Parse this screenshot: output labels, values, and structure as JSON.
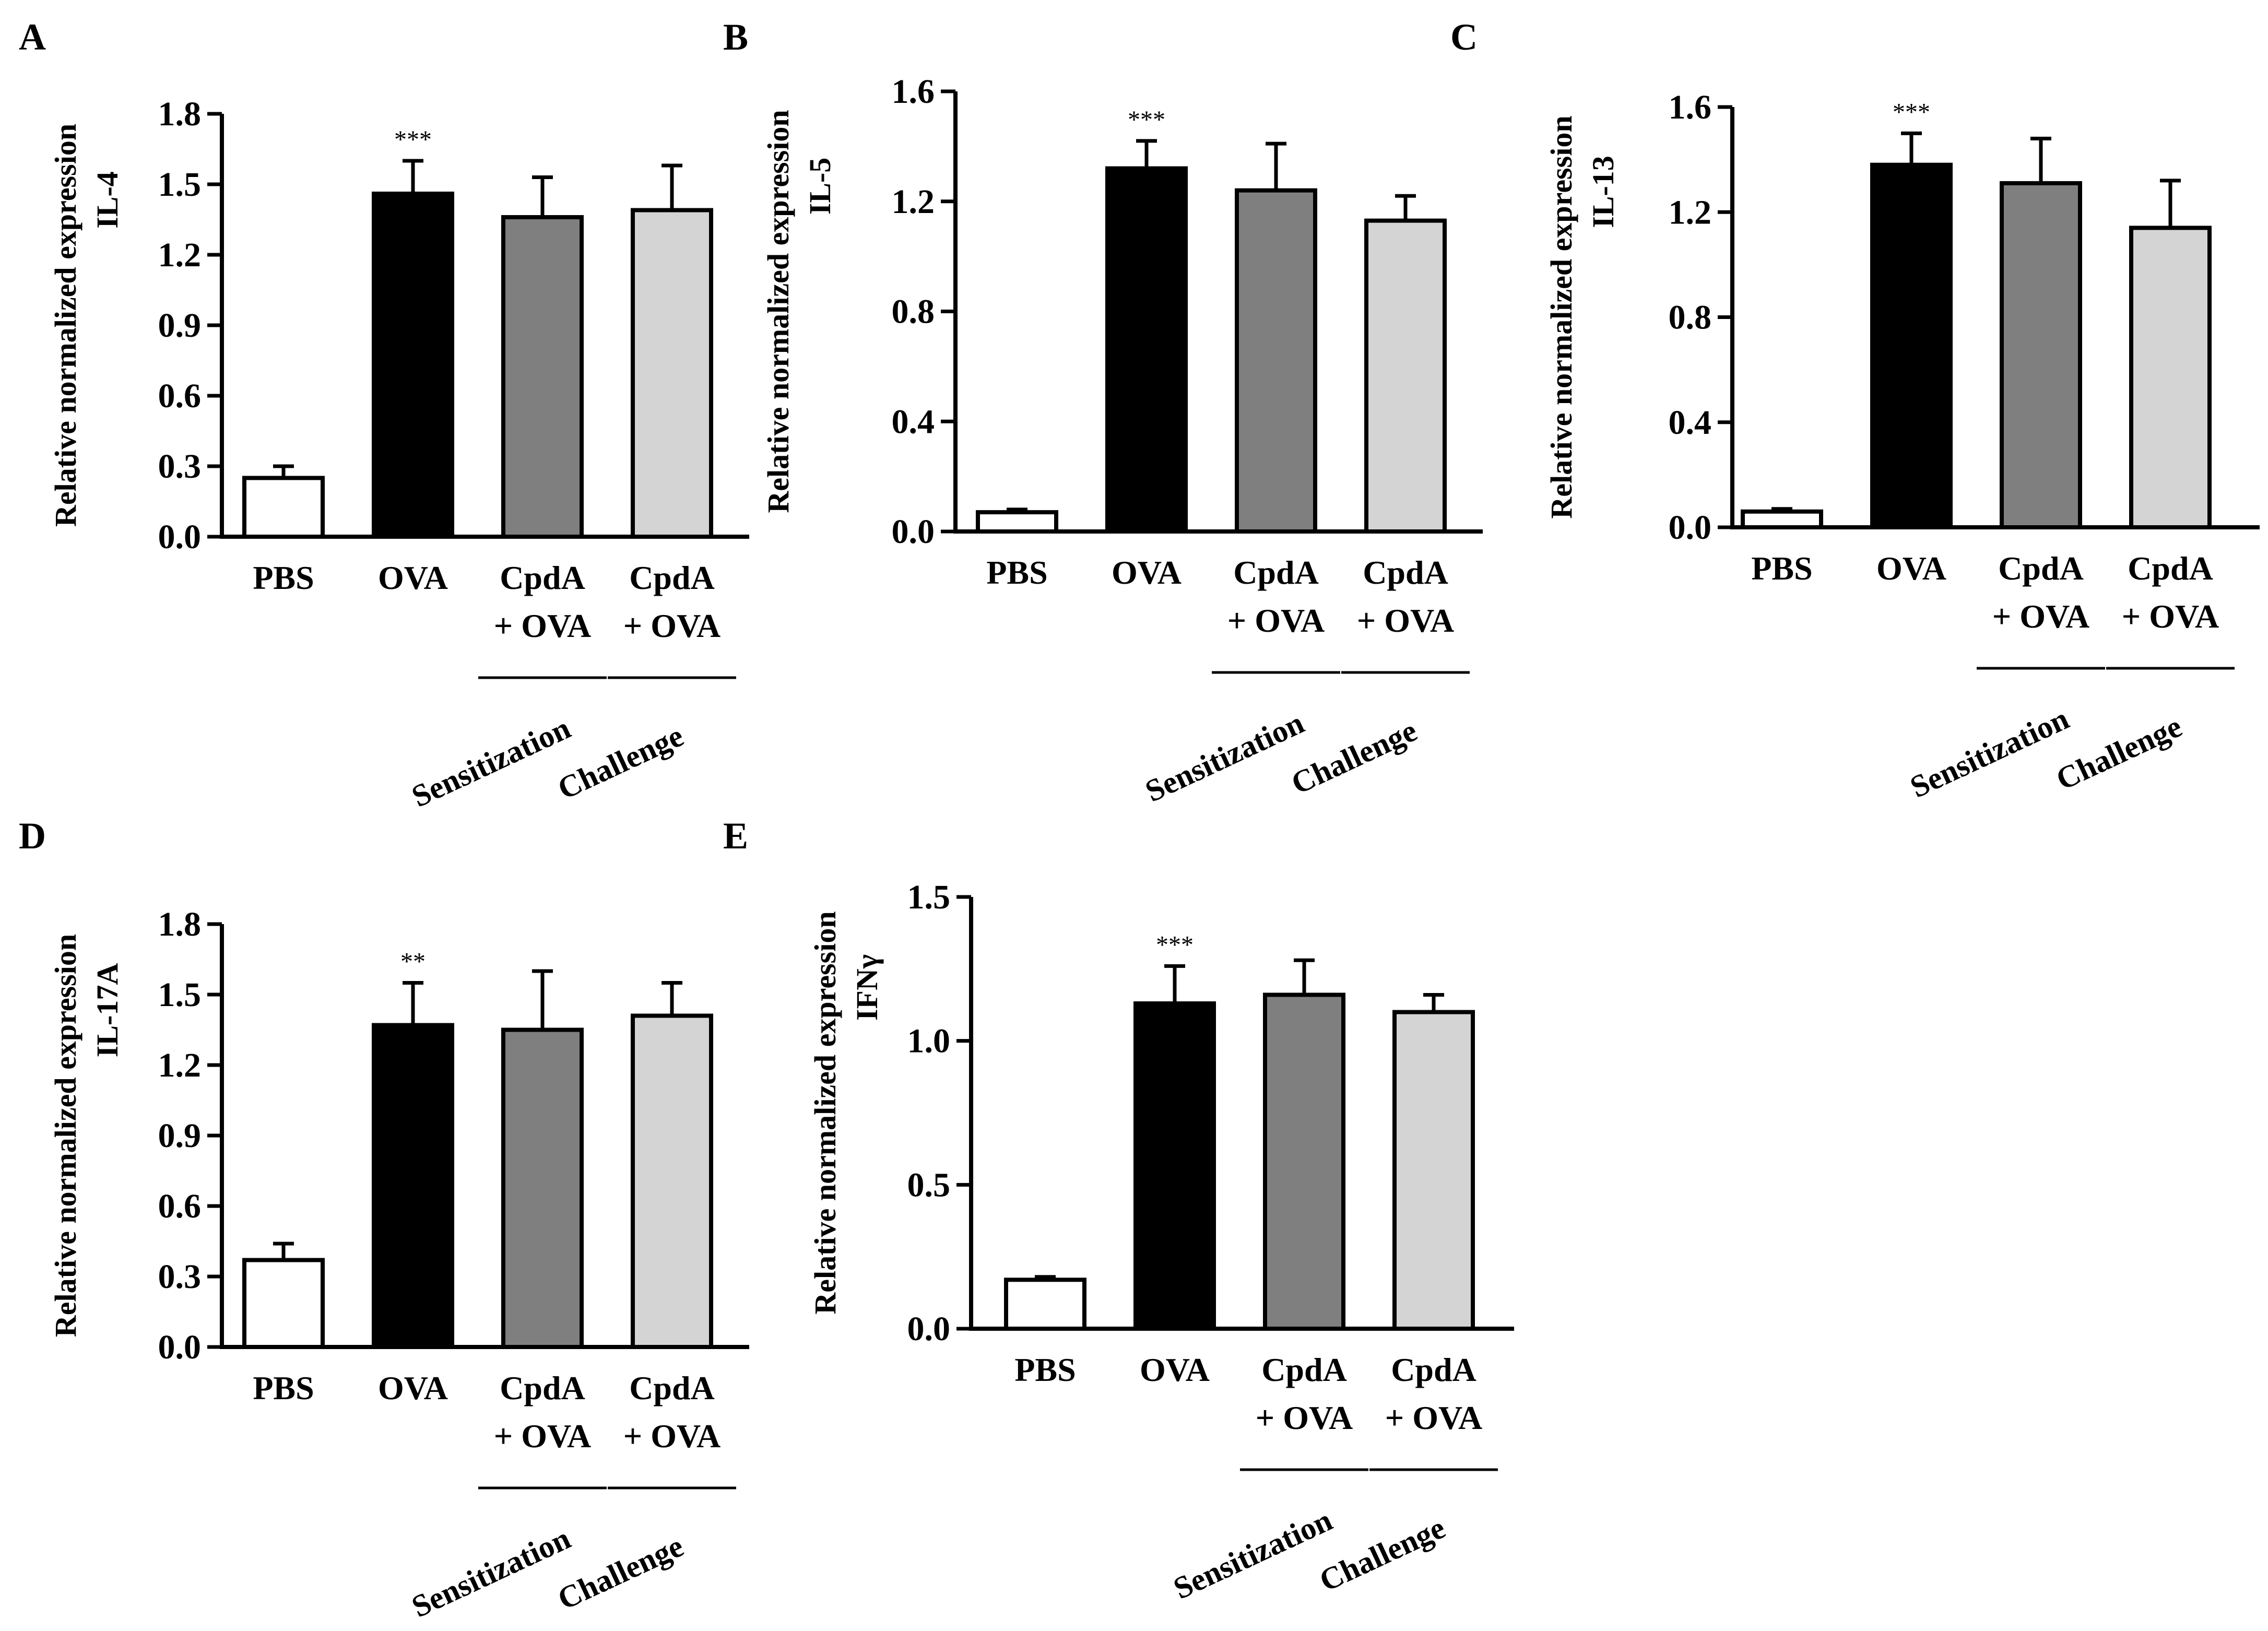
{
  "colors": {
    "PBS": "#ffffff",
    "OVA": "#000000",
    "CpdA_sensitization": "#7f7f7f",
    "CpdA_challenge": "#d4d4d4",
    "axis": "#000000"
  },
  "chart_data": [
    {
      "type": "bar",
      "panel": "A",
      "ylabel": [
        "Relative normalized expression",
        "IL-4"
      ],
      "ylim": [
        0,
        1.8
      ],
      "yticks": [
        "0.0",
        "0.3",
        "0.6",
        "0.9",
        "1.2",
        "1.5",
        "1.8"
      ],
      "categories": [
        [
          "PBS"
        ],
        [
          "OVA"
        ],
        [
          "CpdA",
          "+ OVA"
        ],
        [
          "CpdA",
          "+ OVA"
        ]
      ],
      "values": [
        0.25,
        1.46,
        1.36,
        1.39
      ],
      "errors": [
        0.05,
        0.14,
        0.17,
        0.19
      ],
      "significance": [
        "",
        "***",
        "",
        ""
      ],
      "groups": [
        "Sensitization",
        "Challenge"
      ]
    },
    {
      "type": "bar",
      "panel": "B",
      "ylabel": [
        "Relative normalized expression",
        "IL-5"
      ],
      "ylim": [
        0,
        1.6
      ],
      "yticks": [
        "0.0",
        "0.4",
        "0.8",
        "1.2",
        "1.6"
      ],
      "categories": [
        [
          "PBS"
        ],
        [
          "OVA"
        ],
        [
          "CpdA",
          "+ OVA"
        ],
        [
          "CpdA",
          "+ OVA"
        ]
      ],
      "values": [
        0.07,
        1.32,
        1.24,
        1.13
      ],
      "errors": [
        0.01,
        0.1,
        0.17,
        0.09
      ],
      "significance": [
        "",
        "***",
        "",
        ""
      ],
      "groups": [
        "Sensitization",
        "Challenge"
      ]
    },
    {
      "type": "bar",
      "panel": "C",
      "ylabel": [
        "Relative normalized expression",
        "IL-13"
      ],
      "ylim": [
        0,
        1.6
      ],
      "yticks": [
        "0.0",
        "0.4",
        "0.8",
        "1.2",
        "1.6"
      ],
      "categories": [
        [
          "PBS"
        ],
        [
          "OVA"
        ],
        [
          "CpdA",
          "+ OVA"
        ],
        [
          "CpdA",
          "+ OVA"
        ]
      ],
      "values": [
        0.06,
        1.38,
        1.31,
        1.14
      ],
      "errors": [
        0.01,
        0.12,
        0.17,
        0.18
      ],
      "significance": [
        "",
        "***",
        "",
        ""
      ],
      "groups": [
        "Sensitization",
        "Challenge"
      ]
    },
    {
      "type": "bar",
      "panel": "D",
      "ylabel": [
        "Relative normalized expression",
        "IL-17A"
      ],
      "ylim": [
        0,
        1.8
      ],
      "yticks": [
        "0.0",
        "0.3",
        "0.6",
        "0.9",
        "1.2",
        "1.5",
        "1.8"
      ],
      "categories": [
        [
          "PBS"
        ],
        [
          "OVA"
        ],
        [
          "CpdA",
          "+ OVA"
        ],
        [
          "CpdA",
          "+ OVA"
        ]
      ],
      "values": [
        0.37,
        1.37,
        1.35,
        1.41
      ],
      "errors": [
        0.07,
        0.18,
        0.25,
        0.14
      ],
      "significance": [
        "",
        "**",
        "",
        ""
      ],
      "groups": [
        "Sensitization",
        "Challenge"
      ]
    },
    {
      "type": "bar",
      "panel": "E",
      "ylabel": [
        "Relative normalized expression",
        "IFNγ"
      ],
      "ylim": [
        0,
        1.5
      ],
      "yticks": [
        "0.0",
        "0.5",
        "1.0",
        "1.5"
      ],
      "categories": [
        [
          "PBS"
        ],
        [
          "OVA"
        ],
        [
          "CpdA",
          "+ OVA"
        ],
        [
          "CpdA",
          "+ OVA"
        ]
      ],
      "values": [
        0.17,
        1.13,
        1.16,
        1.1
      ],
      "errors": [
        0.01,
        0.13,
        0.12,
        0.06
      ],
      "significance": [
        "",
        "***",
        "",
        ""
      ],
      "groups": [
        "Sensitization",
        "Challenge"
      ]
    }
  ]
}
